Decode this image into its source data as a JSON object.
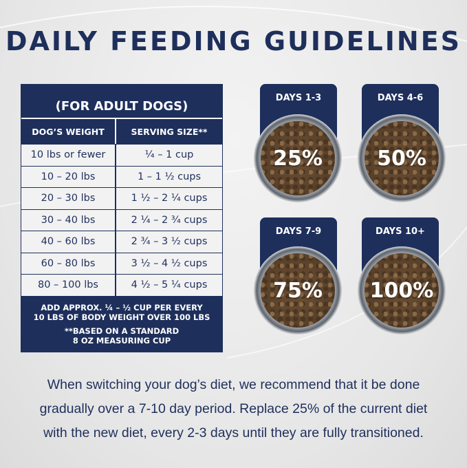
{
  "title": "DAILY FEEDING GUIDELINES",
  "table": {
    "subtitle": "(FOR ADULT DOGS)",
    "headers": [
      "DOG’S WEIGHT",
      "SERVING SIZE**"
    ],
    "rows": [
      [
        "10 lbs or fewer",
        "¼ – 1 cup"
      ],
      [
        "10 – 20 lbs",
        "1 – 1 ½ cups"
      ],
      [
        "20 – 30 lbs",
        "1 ½ – 2 ¼ cups"
      ],
      [
        "30 – 40 lbs",
        "2 ¼ – 2 ¾ cups"
      ],
      [
        "40 – 60 lbs",
        "2 ¾ – 3 ½ cups"
      ],
      [
        "60 – 80 lbs",
        "3 ½ – 4 ½ cups"
      ],
      [
        "80 – 100 lbs",
        "4 ½ – 5 ¼ cups"
      ]
    ],
    "footer_line1": "ADD APPROX. ¼ – ½ CUP PER EVERY",
    "footer_line2": "10 LBS OF BODY WEIGHT OVER 100 LBS",
    "footnote_line1": "**BASED ON A STANDARD",
    "footnote_line2": "8 OZ MEASURING CUP"
  },
  "transition": [
    {
      "label": "DAYS 1-3",
      "percent": "25%"
    },
    {
      "label": "DAYS 4-6",
      "percent": "50%"
    },
    {
      "label": "DAYS 7-9",
      "percent": "75%"
    },
    {
      "label": "DAYS 10+",
      "percent": "100%"
    }
  ],
  "note": [
    "When switching your dog’s diet, we recommend that it be done",
    "gradually over a 7-10 day period. Replace 25% of the current diet",
    "with the new diet, every 2-3 days until they are fully transitioned."
  ],
  "colors": {
    "navy": "#1e2f5c",
    "background": "#ececec"
  }
}
